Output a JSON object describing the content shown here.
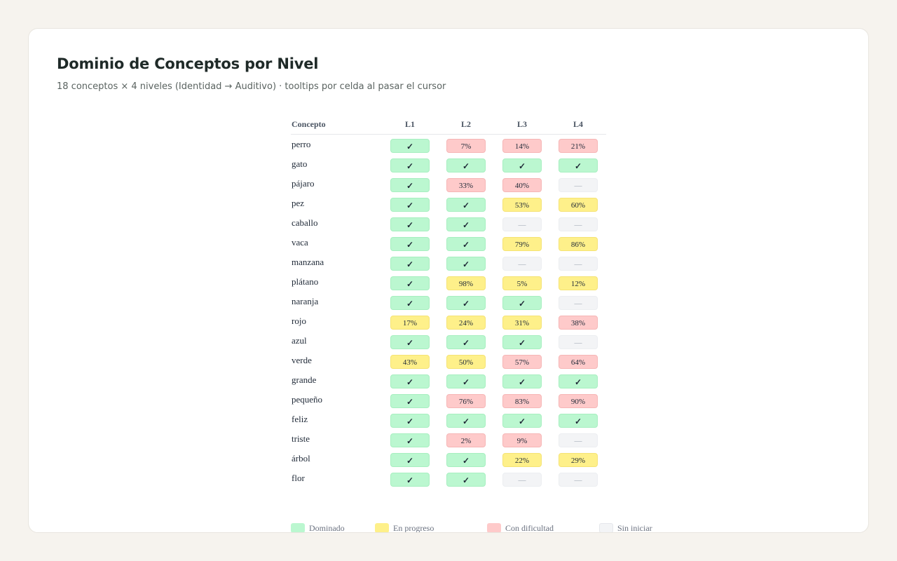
{
  "header": {
    "title": "Dominio de Conceptos por Nivel",
    "subtitle": "18 conceptos × 4 niveles (Identidad → Auditivo) · tooltips por celda al pasar el cursor"
  },
  "table": {
    "concept_header": "Concepto",
    "levels": [
      "L1",
      "L2",
      "L3",
      "L4"
    ],
    "rows": [
      {
        "concept": "perro",
        "cells": [
          {
            "status": "mastered",
            "text": "✓"
          },
          {
            "status": "struggling",
            "text": "7%"
          },
          {
            "status": "struggling",
            "text": "14%"
          },
          {
            "status": "struggling",
            "text": "21%"
          }
        ]
      },
      {
        "concept": "gato",
        "cells": [
          {
            "status": "mastered",
            "text": "✓"
          },
          {
            "status": "mastered",
            "text": "✓"
          },
          {
            "status": "mastered",
            "text": "✓"
          },
          {
            "status": "mastered",
            "text": "✓"
          }
        ]
      },
      {
        "concept": "pájaro",
        "cells": [
          {
            "status": "mastered",
            "text": "✓"
          },
          {
            "status": "struggling",
            "text": "33%"
          },
          {
            "status": "struggling",
            "text": "40%"
          },
          {
            "status": "notstarted",
            "text": "—"
          }
        ]
      },
      {
        "concept": "pez",
        "cells": [
          {
            "status": "mastered",
            "text": "✓"
          },
          {
            "status": "mastered",
            "text": "✓"
          },
          {
            "status": "progress",
            "text": "53%"
          },
          {
            "status": "progress",
            "text": "60%"
          }
        ]
      },
      {
        "concept": "caballo",
        "cells": [
          {
            "status": "mastered",
            "text": "✓"
          },
          {
            "status": "mastered",
            "text": "✓"
          },
          {
            "status": "notstarted",
            "text": "—"
          },
          {
            "status": "notstarted",
            "text": "—"
          }
        ]
      },
      {
        "concept": "vaca",
        "cells": [
          {
            "status": "mastered",
            "text": "✓"
          },
          {
            "status": "mastered",
            "text": "✓"
          },
          {
            "status": "progress",
            "text": "79%"
          },
          {
            "status": "progress",
            "text": "86%"
          }
        ]
      },
      {
        "concept": "manzana",
        "cells": [
          {
            "status": "mastered",
            "text": "✓"
          },
          {
            "status": "mastered",
            "text": "✓"
          },
          {
            "status": "notstarted",
            "text": "—"
          },
          {
            "status": "notstarted",
            "text": "—"
          }
        ]
      },
      {
        "concept": "plátano",
        "cells": [
          {
            "status": "mastered",
            "text": "✓"
          },
          {
            "status": "progress",
            "text": "98%"
          },
          {
            "status": "progress",
            "text": "5%"
          },
          {
            "status": "progress",
            "text": "12%"
          }
        ]
      },
      {
        "concept": "naranja",
        "cells": [
          {
            "status": "mastered",
            "text": "✓"
          },
          {
            "status": "mastered",
            "text": "✓"
          },
          {
            "status": "mastered",
            "text": "✓"
          },
          {
            "status": "notstarted",
            "text": "—"
          }
        ]
      },
      {
        "concept": "rojo",
        "cells": [
          {
            "status": "progress",
            "text": "17%"
          },
          {
            "status": "progress",
            "text": "24%"
          },
          {
            "status": "progress",
            "text": "31%"
          },
          {
            "status": "struggling",
            "text": "38%"
          }
        ]
      },
      {
        "concept": "azul",
        "cells": [
          {
            "status": "mastered",
            "text": "✓"
          },
          {
            "status": "mastered",
            "text": "✓"
          },
          {
            "status": "mastered",
            "text": "✓"
          },
          {
            "status": "notstarted",
            "text": "—"
          }
        ]
      },
      {
        "concept": "verde",
        "cells": [
          {
            "status": "progress",
            "text": "43%"
          },
          {
            "status": "progress",
            "text": "50%"
          },
          {
            "status": "struggling",
            "text": "57%"
          },
          {
            "status": "struggling",
            "text": "64%"
          }
        ]
      },
      {
        "concept": "grande",
        "cells": [
          {
            "status": "mastered",
            "text": "✓"
          },
          {
            "status": "mastered",
            "text": "✓"
          },
          {
            "status": "mastered",
            "text": "✓"
          },
          {
            "status": "mastered",
            "text": "✓"
          }
        ]
      },
      {
        "concept": "pequeño",
        "cells": [
          {
            "status": "mastered",
            "text": "✓"
          },
          {
            "status": "struggling",
            "text": "76%"
          },
          {
            "status": "struggling",
            "text": "83%"
          },
          {
            "status": "struggling",
            "text": "90%"
          }
        ]
      },
      {
        "concept": "feliz",
        "cells": [
          {
            "status": "mastered",
            "text": "✓"
          },
          {
            "status": "mastered",
            "text": "✓"
          },
          {
            "status": "mastered",
            "text": "✓"
          },
          {
            "status": "mastered",
            "text": "✓"
          }
        ]
      },
      {
        "concept": "triste",
        "cells": [
          {
            "status": "mastered",
            "text": "✓"
          },
          {
            "status": "struggling",
            "text": "2%"
          },
          {
            "status": "struggling",
            "text": "9%"
          },
          {
            "status": "notstarted",
            "text": "—"
          }
        ]
      },
      {
        "concept": "árbol",
        "cells": [
          {
            "status": "mastered",
            "text": "✓"
          },
          {
            "status": "mastered",
            "text": "✓"
          },
          {
            "status": "progress",
            "text": "22%"
          },
          {
            "status": "progress",
            "text": "29%"
          }
        ]
      },
      {
        "concept": "flor",
        "cells": [
          {
            "status": "mastered",
            "text": "✓"
          },
          {
            "status": "mastered",
            "text": "✓"
          },
          {
            "status": "notstarted",
            "text": "—"
          },
          {
            "status": "notstarted",
            "text": "—"
          }
        ]
      }
    ]
  },
  "legend": [
    {
      "status": "mastered",
      "label": "Dominado"
    },
    {
      "status": "progress",
      "label": "En progreso"
    },
    {
      "status": "struggling",
      "label": "Con dificultad"
    },
    {
      "status": "notstarted",
      "label": "Sin iniciar"
    }
  ],
  "colors": {
    "mastered": "#bbf7d0",
    "progress": "#fef08a",
    "struggling": "#fecaca",
    "notstarted": "#f3f4f6",
    "page_background": "#f6f3ee"
  }
}
